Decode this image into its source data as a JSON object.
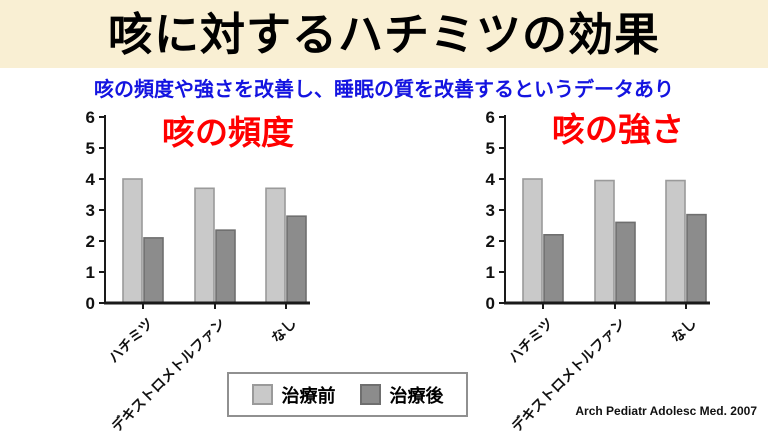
{
  "slide": {
    "title": "咳に対するハチミツの効果",
    "subtitle": "咳の頻度や強さを改善し、睡眠の質を改善するというデータあり",
    "citation": "Arch Pediatr Adolesc Med. 2007"
  },
  "legend": {
    "before_label": "治療前",
    "after_label": "治療後"
  },
  "colors": {
    "title_bg": "#F9EFD3",
    "subtitle_text": "#1414E0",
    "chart_title_text": "#FF0000",
    "bar_before": "#C9C9C9",
    "bar_before_border": "#9A9A9A",
    "bar_after": "#8C8C8C",
    "bar_after_border": "#6F6F6F",
    "axis": "#1A1A1A"
  },
  "chart_data": [
    {
      "type": "bar",
      "title": "咳の頻度",
      "categories": [
        "ハチミツ",
        "デキストロメトルファン",
        "なし"
      ],
      "series": [
        {
          "name": "治療前",
          "values": [
            4.0,
            3.7,
            3.7
          ]
        },
        {
          "name": "治療後",
          "values": [
            2.1,
            2.35,
            2.8
          ]
        }
      ],
      "ylim": [
        0,
        6
      ],
      "yticks": [
        0,
        1,
        2,
        3,
        4,
        5,
        6
      ],
      "grid": false,
      "legend_position": "bottom"
    },
    {
      "type": "bar",
      "title": "咳の強さ",
      "categories": [
        "ハチミツ",
        "デキストロメトルファン",
        "なし"
      ],
      "series": [
        {
          "name": "治療前",
          "values": [
            4.0,
            3.95,
            3.95
          ]
        },
        {
          "name": "治療後",
          "values": [
            2.2,
            2.6,
            2.85
          ]
        }
      ],
      "ylim": [
        0,
        6
      ],
      "yticks": [
        0,
        1,
        2,
        3,
        4,
        5,
        6
      ],
      "grid": false,
      "legend_position": "bottom"
    }
  ]
}
